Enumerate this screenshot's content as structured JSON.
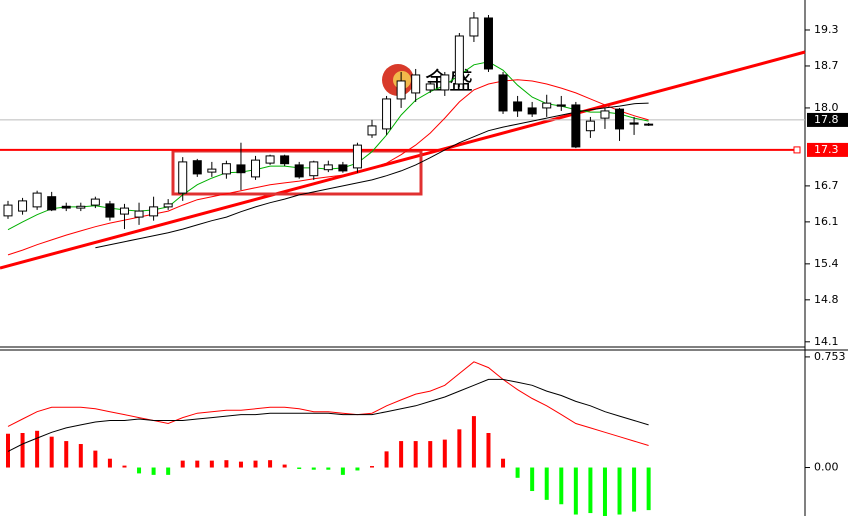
{
  "watermark": "金盛",
  "chart_data": [
    {
      "type": "candlestick",
      "open": [
        16.2,
        16.28,
        16.35,
        16.52,
        16.36,
        16.33,
        16.38,
        16.4,
        16.23,
        16.18,
        16.2,
        16.35,
        16.58,
        17.12,
        16.93,
        16.9,
        17.05,
        16.85,
        17.08,
        17.2,
        17.05,
        16.87,
        16.97,
        17.05,
        17.0,
        17.55,
        17.65,
        18.15,
        18.25,
        18.3,
        18.3,
        18.4,
        19.2,
        19.5,
        18.55,
        18.1,
        18.0,
        18.0,
        18.05,
        18.05,
        17.62,
        17.83,
        17.98,
        17.75,
        17.73
      ],
      "high": [
        16.45,
        16.5,
        16.62,
        16.6,
        16.42,
        16.42,
        16.52,
        16.45,
        16.4,
        16.42,
        16.52,
        16.48,
        17.18,
        17.15,
        17.1,
        17.12,
        17.42,
        17.2,
        17.22,
        17.22,
        17.1,
        17.12,
        17.12,
        17.1,
        17.42,
        17.8,
        18.2,
        18.6,
        18.65,
        18.45,
        18.6,
        19.25,
        19.6,
        19.55,
        18.6,
        18.2,
        18.1,
        18.22,
        18.2,
        18.1,
        17.85,
        18.0,
        18.0,
        17.85,
        17.75
      ],
      "low": [
        16.15,
        16.22,
        16.3,
        16.28,
        16.28,
        16.28,
        16.33,
        16.12,
        15.98,
        16.05,
        16.12,
        16.3,
        16.45,
        16.85,
        16.85,
        16.82,
        16.63,
        16.8,
        17.05,
        17.03,
        16.82,
        16.8,
        16.93,
        16.92,
        16.92,
        17.5,
        17.55,
        18.0,
        18.1,
        18.25,
        18.2,
        18.35,
        19.1,
        18.6,
        17.9,
        17.85,
        17.85,
        17.85,
        17.95,
        17.33,
        17.5,
        17.65,
        17.45,
        17.55,
        17.7
      ],
      "close": [
        16.38,
        16.45,
        16.58,
        16.3,
        16.33,
        16.36,
        16.48,
        16.18,
        16.33,
        16.28,
        16.35,
        16.4,
        17.1,
        16.9,
        16.98,
        17.07,
        16.92,
        17.13,
        17.2,
        17.07,
        16.85,
        17.1,
        17.05,
        16.95,
        17.38,
        17.7,
        18.15,
        18.45,
        18.55,
        18.4,
        18.55,
        19.2,
        19.5,
        18.65,
        17.95,
        17.95,
        17.9,
        18.08,
        18.03,
        17.35,
        17.78,
        17.95,
        17.65,
        17.73,
        17.72
      ],
      "series": [
        {
          "color": "#00b000",
          "values": [
            15.97,
            16.1,
            16.22,
            16.32,
            16.35,
            16.35,
            16.37,
            16.33,
            16.3,
            16.28,
            16.3,
            16.35,
            16.55,
            16.72,
            16.83,
            16.92,
            16.93,
            16.97,
            17.03,
            17.03,
            17.0,
            17.0,
            16.98,
            17.0,
            17.08,
            17.27,
            17.55,
            17.88,
            18.13,
            18.27,
            18.38,
            18.55,
            18.72,
            18.77,
            18.63,
            18.38,
            18.18,
            18.07,
            18.03,
            17.97,
            17.93,
            17.93,
            17.9,
            17.83,
            17.78
          ]
        },
        {
          "color": "#ff0000",
          "values": [
            15.55,
            15.63,
            15.72,
            15.8,
            15.88,
            15.95,
            16.02,
            16.08,
            16.13,
            16.18,
            16.23,
            16.28,
            16.38,
            16.47,
            16.52,
            16.57,
            16.62,
            16.67,
            16.72,
            16.75,
            16.78,
            16.82,
            16.85,
            16.88,
            16.93,
            17.0,
            17.08,
            17.22,
            17.38,
            17.58,
            17.83,
            18.1,
            18.3,
            18.4,
            18.45,
            18.47,
            18.45,
            18.4,
            18.33,
            18.25,
            18.15,
            18.05,
            17.95,
            17.87,
            17.8
          ]
        },
        {
          "color": "#000000",
          "values": [
            null,
            null,
            null,
            null,
            null,
            null,
            15.67,
            15.72,
            15.77,
            15.82,
            15.87,
            15.92,
            15.98,
            16.05,
            16.12,
            16.18,
            16.27,
            16.35,
            16.42,
            16.48,
            16.55,
            16.6,
            16.65,
            16.7,
            16.75,
            16.8,
            16.87,
            16.95,
            17.05,
            17.17,
            17.3,
            17.42,
            17.52,
            17.62,
            17.68,
            17.73,
            17.78,
            17.83,
            17.88,
            17.93,
            17.97,
            18.0,
            18.03,
            18.07,
            18.08
          ]
        }
      ],
      "ylim": [
        14.03,
        19.8
      ],
      "yticks": [
        19.3,
        18.7,
        {
          "value": 18,
          "label": "18.0"
        },
        16.7,
        16.1,
        15.4,
        14.8,
        14.1
      ],
      "current_price": 17.8,
      "hline": {
        "value": 17.3,
        "color": "#ff0000"
      }
    },
    {
      "type": "macd",
      "values": [
        0.23,
        0.235,
        0.25,
        0.21,
        0.18,
        0.16,
        0.115,
        0.06,
        0.013,
        -0.04,
        -0.05,
        -0.05,
        0.047,
        0.047,
        0.047,
        0.05,
        0.04,
        0.047,
        0.05,
        0.02,
        -0.01,
        -0.015,
        -0.015,
        -0.05,
        -0.02,
        0.01,
        0.11,
        0.18,
        0.18,
        0.18,
        0.19,
        0.26,
        0.35,
        0.235,
        0.06,
        -0.07,
        -0.16,
        -0.22,
        -0.25,
        -0.32,
        -0.31,
        -0.33,
        -0.32,
        -0.3,
        -0.29
      ],
      "up_color": "#ff0000",
      "down_color": "#00ff00",
      "series": [
        {
          "color": "#ff0000",
          "values": [
            0.28,
            0.33,
            0.38,
            0.41,
            0.41,
            0.41,
            0.4,
            0.38,
            0.36,
            0.34,
            0.32,
            0.3,
            0.34,
            0.37,
            0.38,
            0.39,
            0.39,
            0.4,
            0.41,
            0.41,
            0.4,
            0.38,
            0.38,
            0.37,
            0.36,
            0.37,
            0.42,
            0.46,
            0.5,
            0.52,
            0.56,
            0.64,
            0.72,
            0.68,
            0.6,
            0.53,
            0.47,
            0.42,
            0.36,
            0.3,
            0.27,
            0.24,
            0.21,
            0.18,
            0.15
          ]
        },
        {
          "color": "#000000",
          "values": [
            0.11,
            0.16,
            0.2,
            0.24,
            0.27,
            0.29,
            0.31,
            0.32,
            0.32,
            0.33,
            0.32,
            0.32,
            0.32,
            0.33,
            0.34,
            0.35,
            0.36,
            0.36,
            0.37,
            0.37,
            0.37,
            0.37,
            0.37,
            0.36,
            0.36,
            0.36,
            0.38,
            0.4,
            0.42,
            0.45,
            0.48,
            0.52,
            0.56,
            0.6,
            0.6,
            0.58,
            0.56,
            0.52,
            0.49,
            0.45,
            0.42,
            0.38,
            0.35,
            0.32,
            0.29
          ]
        }
      ],
      "ylim": [
        -0.33,
        0.8
      ],
      "yticks": [
        0.753,
        {
          "value": 0,
          "label": "0.00"
        }
      ]
    }
  ]
}
